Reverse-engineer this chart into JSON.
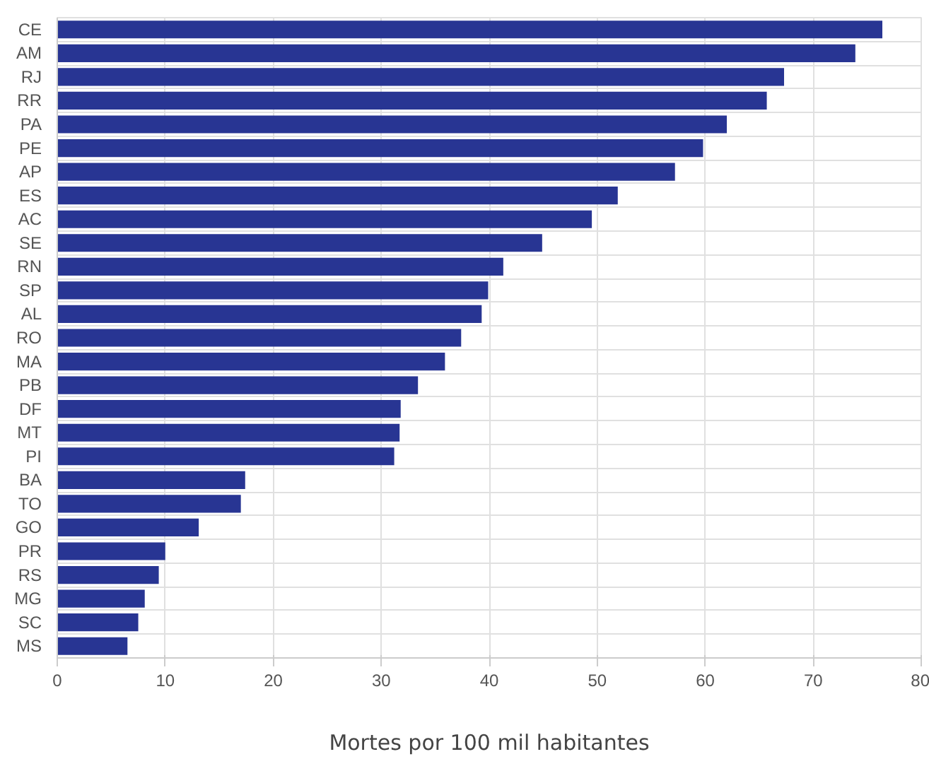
{
  "chart_data": {
    "type": "bar",
    "orientation": "horizontal",
    "xlabel": "Mortes por 100 mil habitantes",
    "categories": [
      "CE",
      "AM",
      "RJ",
      "RR",
      "PA",
      "PE",
      "AP",
      "ES",
      "AC",
      "SE",
      "RN",
      "SP",
      "AL",
      "RO",
      "MA",
      "PB",
      "DF",
      "MT",
      "PI",
      "BA",
      "TO",
      "GO",
      "PR",
      "RS",
      "MG",
      "SC",
      "MS"
    ],
    "values": [
      76.4,
      73.9,
      67.3,
      65.7,
      62.0,
      59.8,
      57.2,
      51.9,
      49.5,
      44.9,
      41.3,
      39.9,
      39.3,
      37.4,
      35.9,
      33.4,
      31.8,
      31.7,
      31.2,
      17.4,
      17.0,
      13.1,
      10.0,
      9.4,
      8.1,
      7.5,
      6.5
    ],
    "color": "#283593",
    "xlim": [
      0,
      80
    ],
    "xticks": [
      0,
      10,
      20,
      30,
      40,
      50,
      60,
      70,
      80
    ],
    "grid": true
  }
}
